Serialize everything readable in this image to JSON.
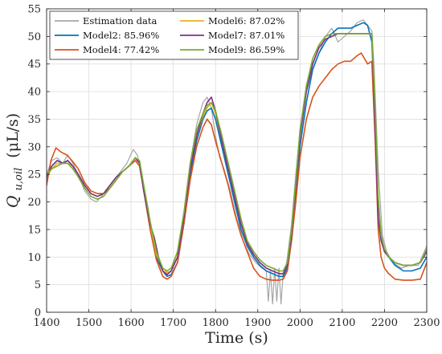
{
  "chart_data": {
    "type": "line",
    "title": "",
    "xlabel": "Time (s)",
    "ylabel": "Q_{u,oil} (μL/s)",
    "ylabel_parts": {
      "main": "Q",
      "sub": "u,oil",
      "unit": "(μL/s)"
    },
    "xlim": [
      1400,
      2300
    ],
    "ylim": [
      0,
      55
    ],
    "xticks": [
      1400,
      1500,
      1600,
      1700,
      1800,
      1900,
      2000,
      2100,
      2200,
      2300
    ],
    "yticks": [
      0,
      5,
      10,
      15,
      20,
      25,
      30,
      35,
      40,
      45,
      50,
      55
    ],
    "grid": true,
    "legend_position": "top-left",
    "series": [
      {
        "name": "Estimation data",
        "color": "#a6a6a6",
        "x": [
          1400,
          1412,
          1425,
          1438,
          1450,
          1462,
          1475,
          1490,
          1505,
          1518,
          1530,
          1545,
          1560,
          1575,
          1590,
          1605,
          1615,
          1625,
          1640,
          1652,
          1665,
          1675,
          1685,
          1695,
          1710,
          1725,
          1740,
          1755,
          1770,
          1780,
          1790,
          1800,
          1810,
          1820,
          1835,
          1850,
          1865,
          1880,
          1895,
          1910,
          1920,
          1925,
          1930,
          1935,
          1940,
          1945,
          1950,
          1955,
          1960,
          1965,
          1970,
          1980,
          1990,
          2000,
          2015,
          2030,
          2045,
          2060,
          2075,
          2090,
          2105,
          2120,
          2135,
          2150,
          2160,
          2170,
          2175,
          2185,
          2195,
          2205,
          2220,
          2240,
          2260,
          2280,
          2300
        ],
        "y": [
          25.0,
          27.5,
          28.0,
          27.0,
          28.5,
          27.0,
          25.0,
          22.0,
          20.5,
          20.0,
          21.0,
          22.5,
          24.0,
          25.5,
          27.0,
          29.5,
          28.5,
          25.0,
          19.0,
          13.0,
          9.0,
          7.5,
          7.0,
          7.5,
          11.0,
          18.0,
          27.0,
          34.0,
          38.0,
          39.0,
          37.0,
          32.0,
          28.0,
          26.0,
          22.0,
          17.0,
          13.0,
          10.5,
          9.0,
          8.0,
          7.5,
          2.0,
          7.5,
          1.5,
          8.0,
          2.0,
          8.0,
          1.5,
          7.0,
          7.5,
          10.0,
          16.0,
          25.0,
          33.0,
          40.0,
          44.0,
          47.0,
          50.0,
          51.5,
          49.0,
          50.0,
          51.0,
          52.5,
          53.0,
          52.0,
          51.0,
          45.0,
          26.0,
          14.0,
          11.0,
          9.0,
          8.0,
          8.5,
          8.5,
          12.0
        ]
      },
      {
        "name": "Model2: 85.96%",
        "color": "#0072bd",
        "x": [
          1400,
          1412,
          1425,
          1438,
          1450,
          1462,
          1475,
          1490,
          1505,
          1520,
          1535,
          1550,
          1565,
          1580,
          1595,
          1610,
          1620,
          1630,
          1645,
          1660,
          1675,
          1685,
          1695,
          1710,
          1725,
          1740,
          1755,
          1770,
          1780,
          1790,
          1800,
          1815,
          1830,
          1845,
          1860,
          1875,
          1890,
          1905,
          1920,
          1935,
          1950,
          1960,
          1970,
          1980,
          1990,
          2000,
          2015,
          2030,
          2045,
          2060,
          2075,
          2090,
          2105,
          2120,
          2135,
          2150,
          2160,
          2170,
          2178,
          2185,
          2192,
          2200,
          2210,
          2225,
          2245,
          2265,
          2285,
          2300
        ],
        "y": [
          24.0,
          26.5,
          27.5,
          27.0,
          27.5,
          26.5,
          25.0,
          23.0,
          21.5,
          21.0,
          21.5,
          23.0,
          24.5,
          25.5,
          26.5,
          28.0,
          27.0,
          22.0,
          15.5,
          10.0,
          7.5,
          6.5,
          6.8,
          9.0,
          16.0,
          25.0,
          31.0,
          35.0,
          36.5,
          37.0,
          35.0,
          30.0,
          25.0,
          20.0,
          15.0,
          12.0,
          10.0,
          8.5,
          7.5,
          7.0,
          6.5,
          6.5,
          8.0,
          13.0,
          21.0,
          30.0,
          38.0,
          44.0,
          47.0,
          49.0,
          50.5,
          51.5,
          51.5,
          51.5,
          52.0,
          52.5,
          52.0,
          49.0,
          35.0,
          20.0,
          14.0,
          11.0,
          10.0,
          8.5,
          7.5,
          7.5,
          8.0,
          10.0
        ]
      },
      {
        "name": "Model4: 77.42%",
        "color": "#d95319",
        "x": [
          1400,
          1410,
          1422,
          1435,
          1448,
          1460,
          1475,
          1490,
          1505,
          1520,
          1535,
          1550,
          1565,
          1580,
          1595,
          1610,
          1620,
          1630,
          1645,
          1660,
          1675,
          1685,
          1695,
          1710,
          1725,
          1740,
          1755,
          1770,
          1780,
          1790,
          1800,
          1815,
          1830,
          1845,
          1860,
          1875,
          1890,
          1905,
          1920,
          1935,
          1950,
          1960,
          1970,
          1980,
          1990,
          2000,
          2015,
          2030,
          2045,
          2060,
          2075,
          2090,
          2105,
          2120,
          2135,
          2145,
          2160,
          2170,
          2178,
          2185,
          2192,
          2200,
          2210,
          2225,
          2245,
          2265,
          2285,
          2300
        ],
        "y": [
          23.0,
          27.5,
          29.8,
          29.0,
          28.5,
          27.5,
          26.0,
          23.5,
          22.0,
          21.5,
          21.5,
          22.5,
          24.0,
          25.5,
          26.5,
          27.5,
          26.5,
          22.0,
          15.0,
          9.5,
          6.5,
          6.0,
          6.5,
          9.0,
          16.0,
          24.0,
          30.0,
          33.5,
          35.0,
          34.0,
          31.0,
          27.0,
          23.0,
          18.0,
          14.0,
          11.0,
          8.0,
          6.5,
          6.0,
          5.8,
          5.8,
          6.0,
          7.5,
          13.0,
          20.0,
          28.0,
          35.0,
          39.0,
          41.0,
          42.5,
          44.0,
          45.0,
          45.5,
          45.5,
          46.5,
          47.0,
          45.0,
          45.5,
          31.0,
          15.0,
          10.0,
          8.0,
          7.0,
          6.0,
          5.8,
          5.8,
          6.0,
          9.0
        ]
      },
      {
        "name": "Model6: 87.02%",
        "color": "#edb120",
        "x": [
          1400,
          1412,
          1425,
          1438,
          1450,
          1462,
          1475,
          1490,
          1505,
          1520,
          1535,
          1550,
          1565,
          1580,
          1595,
          1610,
          1620,
          1630,
          1645,
          1660,
          1675,
          1685,
          1695,
          1710,
          1725,
          1740,
          1755,
          1770,
          1780,
          1790,
          1800,
          1815,
          1830,
          1845,
          1860,
          1875,
          1890,
          1905,
          1920,
          1935,
          1950,
          1960,
          1970,
          1980,
          1990,
          2000,
          2015,
          2030,
          2045,
          2060,
          2075,
          2090,
          2105,
          2120,
          2135,
          2150,
          2160,
          2170,
          2178,
          2185,
          2192,
          2200,
          2210,
          2225,
          2245,
          2265,
          2285,
          2300
        ],
        "y": [
          24.5,
          26.0,
          27.0,
          27.0,
          27.0,
          26.5,
          25.0,
          23.0,
          21.5,
          21.0,
          21.5,
          23.0,
          24.5,
          25.5,
          26.5,
          28.0,
          27.0,
          22.5,
          16.0,
          10.5,
          8.0,
          7.2,
          7.5,
          10.0,
          17.0,
          26.0,
          32.0,
          35.5,
          37.0,
          38.0,
          36.0,
          31.0,
          26.0,
          21.0,
          16.0,
          12.5,
          10.5,
          9.0,
          8.0,
          7.5,
          7.0,
          7.0,
          8.5,
          14.0,
          23.0,
          32.0,
          40.0,
          45.0,
          48.0,
          49.5,
          50.0,
          50.5,
          50.5,
          50.5,
          50.5,
          50.5,
          50.5,
          50.5,
          36.0,
          20.0,
          13.0,
          11.0,
          10.0,
          9.0,
          8.5,
          8.5,
          9.0,
          11.0
        ]
      },
      {
        "name": "Model7: 87.01%",
        "color": "#7e2f8e",
        "x": [
          1400,
          1412,
          1425,
          1438,
          1450,
          1462,
          1475,
          1490,
          1505,
          1520,
          1535,
          1550,
          1565,
          1580,
          1595,
          1610,
          1620,
          1630,
          1645,
          1655,
          1665,
          1675,
          1685,
          1695,
          1710,
          1725,
          1740,
          1755,
          1770,
          1780,
          1790,
          1800,
          1815,
          1830,
          1845,
          1860,
          1875,
          1890,
          1905,
          1920,
          1935,
          1950,
          1960,
          1970,
          1980,
          1990,
          2000,
          2015,
          2030,
          2045,
          2060,
          2075,
          2090,
          2105,
          2120,
          2135,
          2150,
          2160,
          2170,
          2178,
          2185,
          2192,
          2200,
          2210,
          2225,
          2245,
          2265,
          2285,
          2300
        ],
        "y": [
          24.5,
          26.5,
          27.5,
          27.0,
          27.5,
          26.5,
          25.0,
          23.0,
          21.5,
          21.0,
          21.5,
          23.0,
          24.5,
          25.5,
          26.5,
          28.0,
          27.0,
          22.0,
          16.0,
          13.5,
          10.0,
          7.5,
          6.8,
          7.5,
          10.0,
          17.0,
          26.0,
          32.0,
          36.0,
          38.0,
          39.0,
          36.5,
          31.0,
          26.0,
          21.0,
          16.0,
          12.5,
          10.5,
          9.0,
          8.0,
          7.5,
          7.0,
          7.0,
          8.5,
          14.0,
          23.0,
          32.0,
          40.0,
          45.0,
          48.0,
          49.5,
          50.0,
          50.5,
          50.5,
          50.5,
          50.5,
          50.5,
          50.5,
          50.5,
          33.0,
          17.0,
          13.0,
          11.0,
          10.0,
          9.0,
          8.5,
          8.5,
          9.0,
          11.0
        ]
      },
      {
        "name": "Model9: 86.59%",
        "color": "#77ac30",
        "x": [
          1400,
          1412,
          1425,
          1438,
          1450,
          1462,
          1475,
          1490,
          1505,
          1520,
          1535,
          1550,
          1565,
          1580,
          1595,
          1610,
          1620,
          1630,
          1645,
          1660,
          1675,
          1685,
          1695,
          1710,
          1725,
          1740,
          1755,
          1770,
          1780,
          1790,
          1800,
          1815,
          1830,
          1845,
          1860,
          1875,
          1890,
          1905,
          1920,
          1935,
          1950,
          1960,
          1970,
          1980,
          1990,
          2000,
          2015,
          2030,
          2045,
          2060,
          2075,
          2090,
          2105,
          2120,
          2135,
          2150,
          2160,
          2170,
          2178,
          2185,
          2192,
          2200,
          2210,
          2225,
          2245,
          2265,
          2285,
          2300
        ],
        "y": [
          25.0,
          26.0,
          26.5,
          27.0,
          27.0,
          26.0,
          24.5,
          22.5,
          21.0,
          20.5,
          21.0,
          22.5,
          24.0,
          25.5,
          26.5,
          28.0,
          27.5,
          23.0,
          16.5,
          11.0,
          8.0,
          7.5,
          8.0,
          11.0,
          18.0,
          27.0,
          33.0,
          36.0,
          37.5,
          38.0,
          36.5,
          32.0,
          27.0,
          22.0,
          17.0,
          13.0,
          11.0,
          9.5,
          8.5,
          8.0,
          7.5,
          7.5,
          9.0,
          15.0,
          24.0,
          33.0,
          41.0,
          46.0,
          48.5,
          50.0,
          50.5,
          50.5,
          50.5,
          50.5,
          50.5,
          50.5,
          50.5,
          50.5,
          37.0,
          21.0,
          14.0,
          11.5,
          10.0,
          9.0,
          8.5,
          8.5,
          9.0,
          11.5
        ]
      }
    ]
  }
}
